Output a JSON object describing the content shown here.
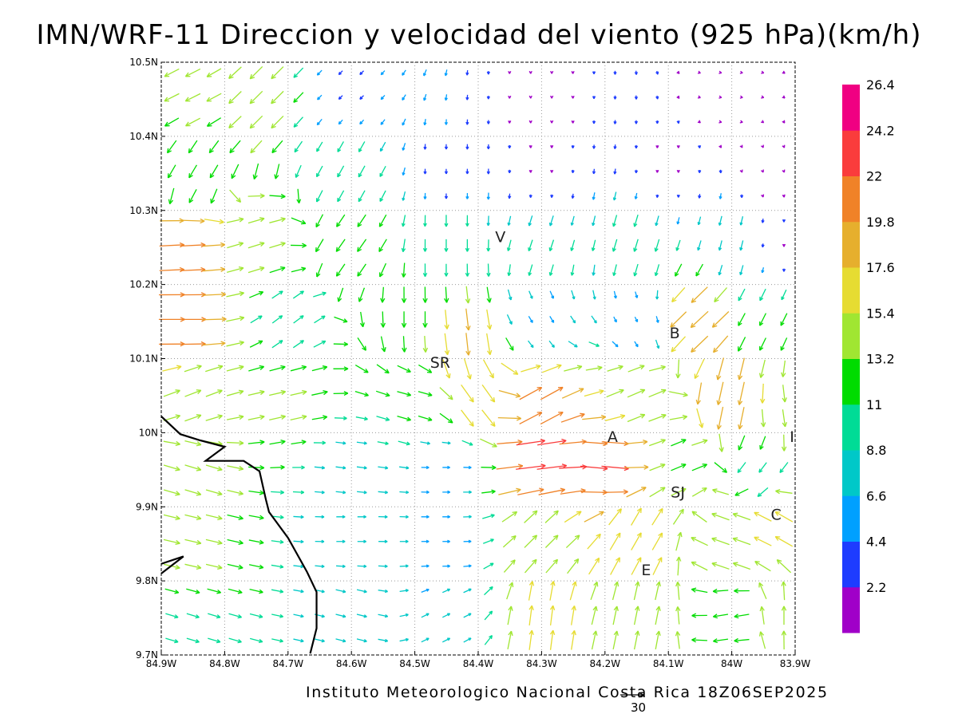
{
  "title": "IMN/WRF-11 Direccion y velocidad del viento (925 hPa)(km/h)",
  "footer": "Instituto Meteorologico Nacional Costa Rica 18Z06SEP2025",
  "reference_vector_label": "30",
  "axes": {
    "x_range": [
      -84.9,
      -83.9
    ],
    "y_range": [
      9.7,
      10.5
    ],
    "x_ticks": [
      {
        "value": -84.9,
        "label": "84.9W"
      },
      {
        "value": -84.8,
        "label": "84.8W"
      },
      {
        "value": -84.7,
        "label": "84.7W"
      },
      {
        "value": -84.6,
        "label": "84.6W"
      },
      {
        "value": -84.5,
        "label": "84.5W"
      },
      {
        "value": -84.4,
        "label": "84.4W"
      },
      {
        "value": -84.3,
        "label": "84.3W"
      },
      {
        "value": -84.2,
        "label": "84.2W"
      },
      {
        "value": -84.1,
        "label": "84.1W"
      },
      {
        "value": -84.0,
        "label": "84W"
      },
      {
        "value": -83.9,
        "label": "83.9W"
      }
    ],
    "y_ticks": [
      {
        "value": 9.7,
        "label": "9.7N"
      },
      {
        "value": 9.8,
        "label": "9.8N"
      },
      {
        "value": 9.9,
        "label": "9.9N"
      },
      {
        "value": 10.0,
        "label": "10N"
      },
      {
        "value": 10.1,
        "label": "10.1N"
      },
      {
        "value": 10.2,
        "label": "10.2N"
      },
      {
        "value": 10.3,
        "label": "10.3N"
      },
      {
        "value": 10.4,
        "label": "10.4N"
      },
      {
        "value": 10.5,
        "label": "10.5N"
      }
    ],
    "grid": "dotted"
  },
  "places": [
    {
      "label": "V",
      "lon": -84.365,
      "lat": 10.265
    },
    {
      "label": "B",
      "lon": -84.09,
      "lat": 10.135
    },
    {
      "label": "SR",
      "lon": -84.46,
      "lat": 10.095
    },
    {
      "label": "A",
      "lon": -84.188,
      "lat": 9.995
    },
    {
      "label": "I",
      "lon": -83.905,
      "lat": 9.995
    },
    {
      "label": "SJ",
      "lon": -84.085,
      "lat": 9.92
    },
    {
      "label": "C",
      "lon": -83.93,
      "lat": 9.89
    },
    {
      "label": "E",
      "lon": -84.135,
      "lat": 9.815
    }
  ],
  "coastline": [
    [
      -84.9,
      10.022
    ],
    [
      -84.87,
      9.998
    ],
    [
      -84.84,
      9.99
    ],
    [
      -84.8,
      9.981
    ],
    [
      -84.83,
      9.962
    ],
    [
      -84.77,
      9.962
    ],
    [
      -84.745,
      9.948
    ],
    [
      -84.735,
      9.91
    ],
    [
      -84.73,
      9.893
    ],
    [
      -84.7,
      9.858
    ],
    [
      -84.67,
      9.812
    ],
    [
      -84.655,
      9.785
    ],
    [
      -84.655,
      9.736
    ],
    [
      -84.665,
      9.702
    ]
  ],
  "coastline_inlet": [
    [
      -84.9,
      9.823
    ],
    [
      -84.865,
      9.833
    ],
    [
      -84.9,
      9.81
    ]
  ],
  "colorbar": {
    "colors": [
      "#a000c8",
      "#1e3cff",
      "#00a0ff",
      "#00c8c8",
      "#00dc96",
      "#00dc00",
      "#a0e632",
      "#e6dc32",
      "#e6af2d",
      "#f08228",
      "#fa3c3c",
      "#f00082"
    ],
    "labels": [
      "2.2",
      "4.4",
      "6.6",
      "8.8",
      "11",
      "13.2",
      "15.4",
      "17.6",
      "19.8",
      "22",
      "24.2",
      "26.4"
    ],
    "bounds": [
      0,
      2.2,
      4.4,
      6.6,
      8.8,
      11,
      13.2,
      15.4,
      17.6,
      19.8,
      22,
      24.2,
      26.4,
      28.6
    ]
  },
  "chart_data": {
    "type": "vector_field",
    "variable": "wind direction and speed at 925 hPa",
    "units": "km/h",
    "grid_spacing_deg": 0.0333,
    "regions": [
      {
        "lon": -84.85,
        "lat": 10.45,
        "u": -12,
        "v": -6,
        "speed": 13
      },
      {
        "lon": -84.75,
        "lat": 10.45,
        "u": -10,
        "v": -10,
        "speed": 14
      },
      {
        "lon": -84.6,
        "lat": 10.45,
        "u": -3,
        "v": -3,
        "speed": 4
      },
      {
        "lon": -84.3,
        "lat": 10.45,
        "u": 0,
        "v": -1.5,
        "speed": 1.5
      },
      {
        "lon": -84.0,
        "lat": 10.45,
        "u": 1.5,
        "v": -0.3,
        "speed": 1.5
      },
      {
        "lon": -84.85,
        "lat": 10.35,
        "u": -6,
        "v": -10,
        "speed": 12
      },
      {
        "lon": -84.6,
        "lat": 10.35,
        "u": -5,
        "v": -9,
        "speed": 10
      },
      {
        "lon": -84.45,
        "lat": 10.35,
        "u": 0,
        "v": -4,
        "speed": 4
      },
      {
        "lon": -84.3,
        "lat": 10.35,
        "u": 0,
        "v": -2,
        "speed": 2
      },
      {
        "lon": -84.1,
        "lat": 10.35,
        "u": 0,
        "v": -2,
        "speed": 2
      },
      {
        "lon": -83.95,
        "lat": 10.35,
        "u": 0.6,
        "v": -1.5,
        "speed": 1.6
      },
      {
        "lon": -84.87,
        "lat": 10.25,
        "u": 20,
        "v": 1,
        "speed": 20
      },
      {
        "lon": -84.75,
        "lat": 10.25,
        "u": 13,
        "v": 4,
        "speed": 13.5
      },
      {
        "lon": -84.6,
        "lat": 10.25,
        "u": -7,
        "v": -10,
        "speed": 12
      },
      {
        "lon": -84.45,
        "lat": 10.25,
        "u": 0,
        "v": -10,
        "speed": 10
      },
      {
        "lon": -84.3,
        "lat": 10.25,
        "u": -3,
        "v": -9,
        "speed": 9.5
      },
      {
        "lon": -84.15,
        "lat": 10.25,
        "u": -3,
        "v": -10,
        "speed": 10
      },
      {
        "lon": -84.0,
        "lat": 10.25,
        "u": -2,
        "v": -8,
        "speed": 8
      },
      {
        "lon": -83.92,
        "lat": 10.25,
        "u": 0,
        "v": -2,
        "speed": 2
      },
      {
        "lon": -84.87,
        "lat": 10.15,
        "u": 21,
        "v": 0,
        "speed": 21
      },
      {
        "lon": -84.7,
        "lat": 10.15,
        "u": 8,
        "v": 6,
        "speed": 10
      },
      {
        "lon": -84.5,
        "lat": 10.15,
        "u": 0,
        "v": -13,
        "speed": 13
      },
      {
        "lon": -84.42,
        "lat": 10.12,
        "u": 2,
        "v": -18,
        "speed": 18
      },
      {
        "lon": -84.3,
        "lat": 10.15,
        "u": 3,
        "v": -5,
        "speed": 6
      },
      {
        "lon": -84.15,
        "lat": 10.15,
        "u": 2,
        "v": -4,
        "speed": 4.5
      },
      {
        "lon": -84.05,
        "lat": 10.15,
        "u": -14,
        "v": -13,
        "speed": 19
      },
      {
        "lon": -83.95,
        "lat": 10.15,
        "u": -5,
        "v": -10,
        "speed": 11
      },
      {
        "lon": -84.85,
        "lat": 10.05,
        "u": 13,
        "v": 5,
        "speed": 14
      },
      {
        "lon": -84.7,
        "lat": 10.05,
        "u": 13,
        "v": 3,
        "speed": 13.5
      },
      {
        "lon": -84.5,
        "lat": 10.05,
        "u": 11,
        "v": -3,
        "speed": 11.5
      },
      {
        "lon": -84.4,
        "lat": 10.05,
        "u": 10,
        "v": -14,
        "speed": 17
      },
      {
        "lon": -84.3,
        "lat": 10.04,
        "u": 18,
        "v": 10,
        "speed": 20
      },
      {
        "lon": -84.15,
        "lat": 10.05,
        "u": 14,
        "v": 6,
        "speed": 15
      },
      {
        "lon": -84.0,
        "lat": 10.05,
        "u": -4,
        "v": -18,
        "speed": 19
      },
      {
        "lon": -83.92,
        "lat": 10.02,
        "u": 2,
        "v": -14,
        "speed": 14
      },
      {
        "lon": -84.85,
        "lat": 9.95,
        "u": 13,
        "v": -4,
        "speed": 13.5
      },
      {
        "lon": -84.6,
        "lat": 9.95,
        "u": 8,
        "v": -1,
        "speed": 8
      },
      {
        "lon": -84.45,
        "lat": 9.95,
        "u": 6,
        "v": 0,
        "speed": 6
      },
      {
        "lon": -84.3,
        "lat": 9.96,
        "u": 24,
        "v": 3,
        "speed": 24
      },
      {
        "lon": -84.2,
        "lat": 9.96,
        "u": 22,
        "v": -2,
        "speed": 22
      },
      {
        "lon": -84.08,
        "lat": 9.96,
        "u": 12,
        "v": 5,
        "speed": 13
      },
      {
        "lon": -83.95,
        "lat": 9.95,
        "u": -6,
        "v": -8,
        "speed": 10
      },
      {
        "lon": -84.85,
        "lat": 9.85,
        "u": 13,
        "v": -3,
        "speed": 13.5
      },
      {
        "lon": -84.6,
        "lat": 9.87,
        "u": 7,
        "v": 0,
        "speed": 7
      },
      {
        "lon": -84.45,
        "lat": 9.85,
        "u": 6,
        "v": 0,
        "speed": 6
      },
      {
        "lon": -84.3,
        "lat": 9.86,
        "u": 10,
        "v": 10,
        "speed": 14
      },
      {
        "lon": -84.15,
        "lat": 9.86,
        "u": 8,
        "v": 14,
        "speed": 16
      },
      {
        "lon": -84.0,
        "lat": 9.86,
        "u": -14,
        "v": 5,
        "speed": 15
      },
      {
        "lon": -83.92,
        "lat": 9.88,
        "u": -14,
        "v": 8,
        "speed": 16
      },
      {
        "lon": -84.85,
        "lat": 9.74,
        "u": 10,
        "v": -3,
        "speed": 10.5
      },
      {
        "lon": -84.6,
        "lat": 9.75,
        "u": 8,
        "v": -2,
        "speed": 8
      },
      {
        "lon": -84.45,
        "lat": 9.75,
        "u": 6,
        "v": 3,
        "speed": 6.5
      },
      {
        "lon": -84.3,
        "lat": 9.75,
        "u": 2,
        "v": 16,
        "speed": 16
      },
      {
        "lon": -84.15,
        "lat": 9.75,
        "u": 3,
        "v": 15,
        "speed": 15
      },
      {
        "lon": -84.0,
        "lat": 9.75,
        "u": -12,
        "v": -2,
        "speed": 12
      },
      {
        "lon": -83.92,
        "lat": 9.75,
        "u": 0,
        "v": 15,
        "speed": 15
      }
    ]
  }
}
